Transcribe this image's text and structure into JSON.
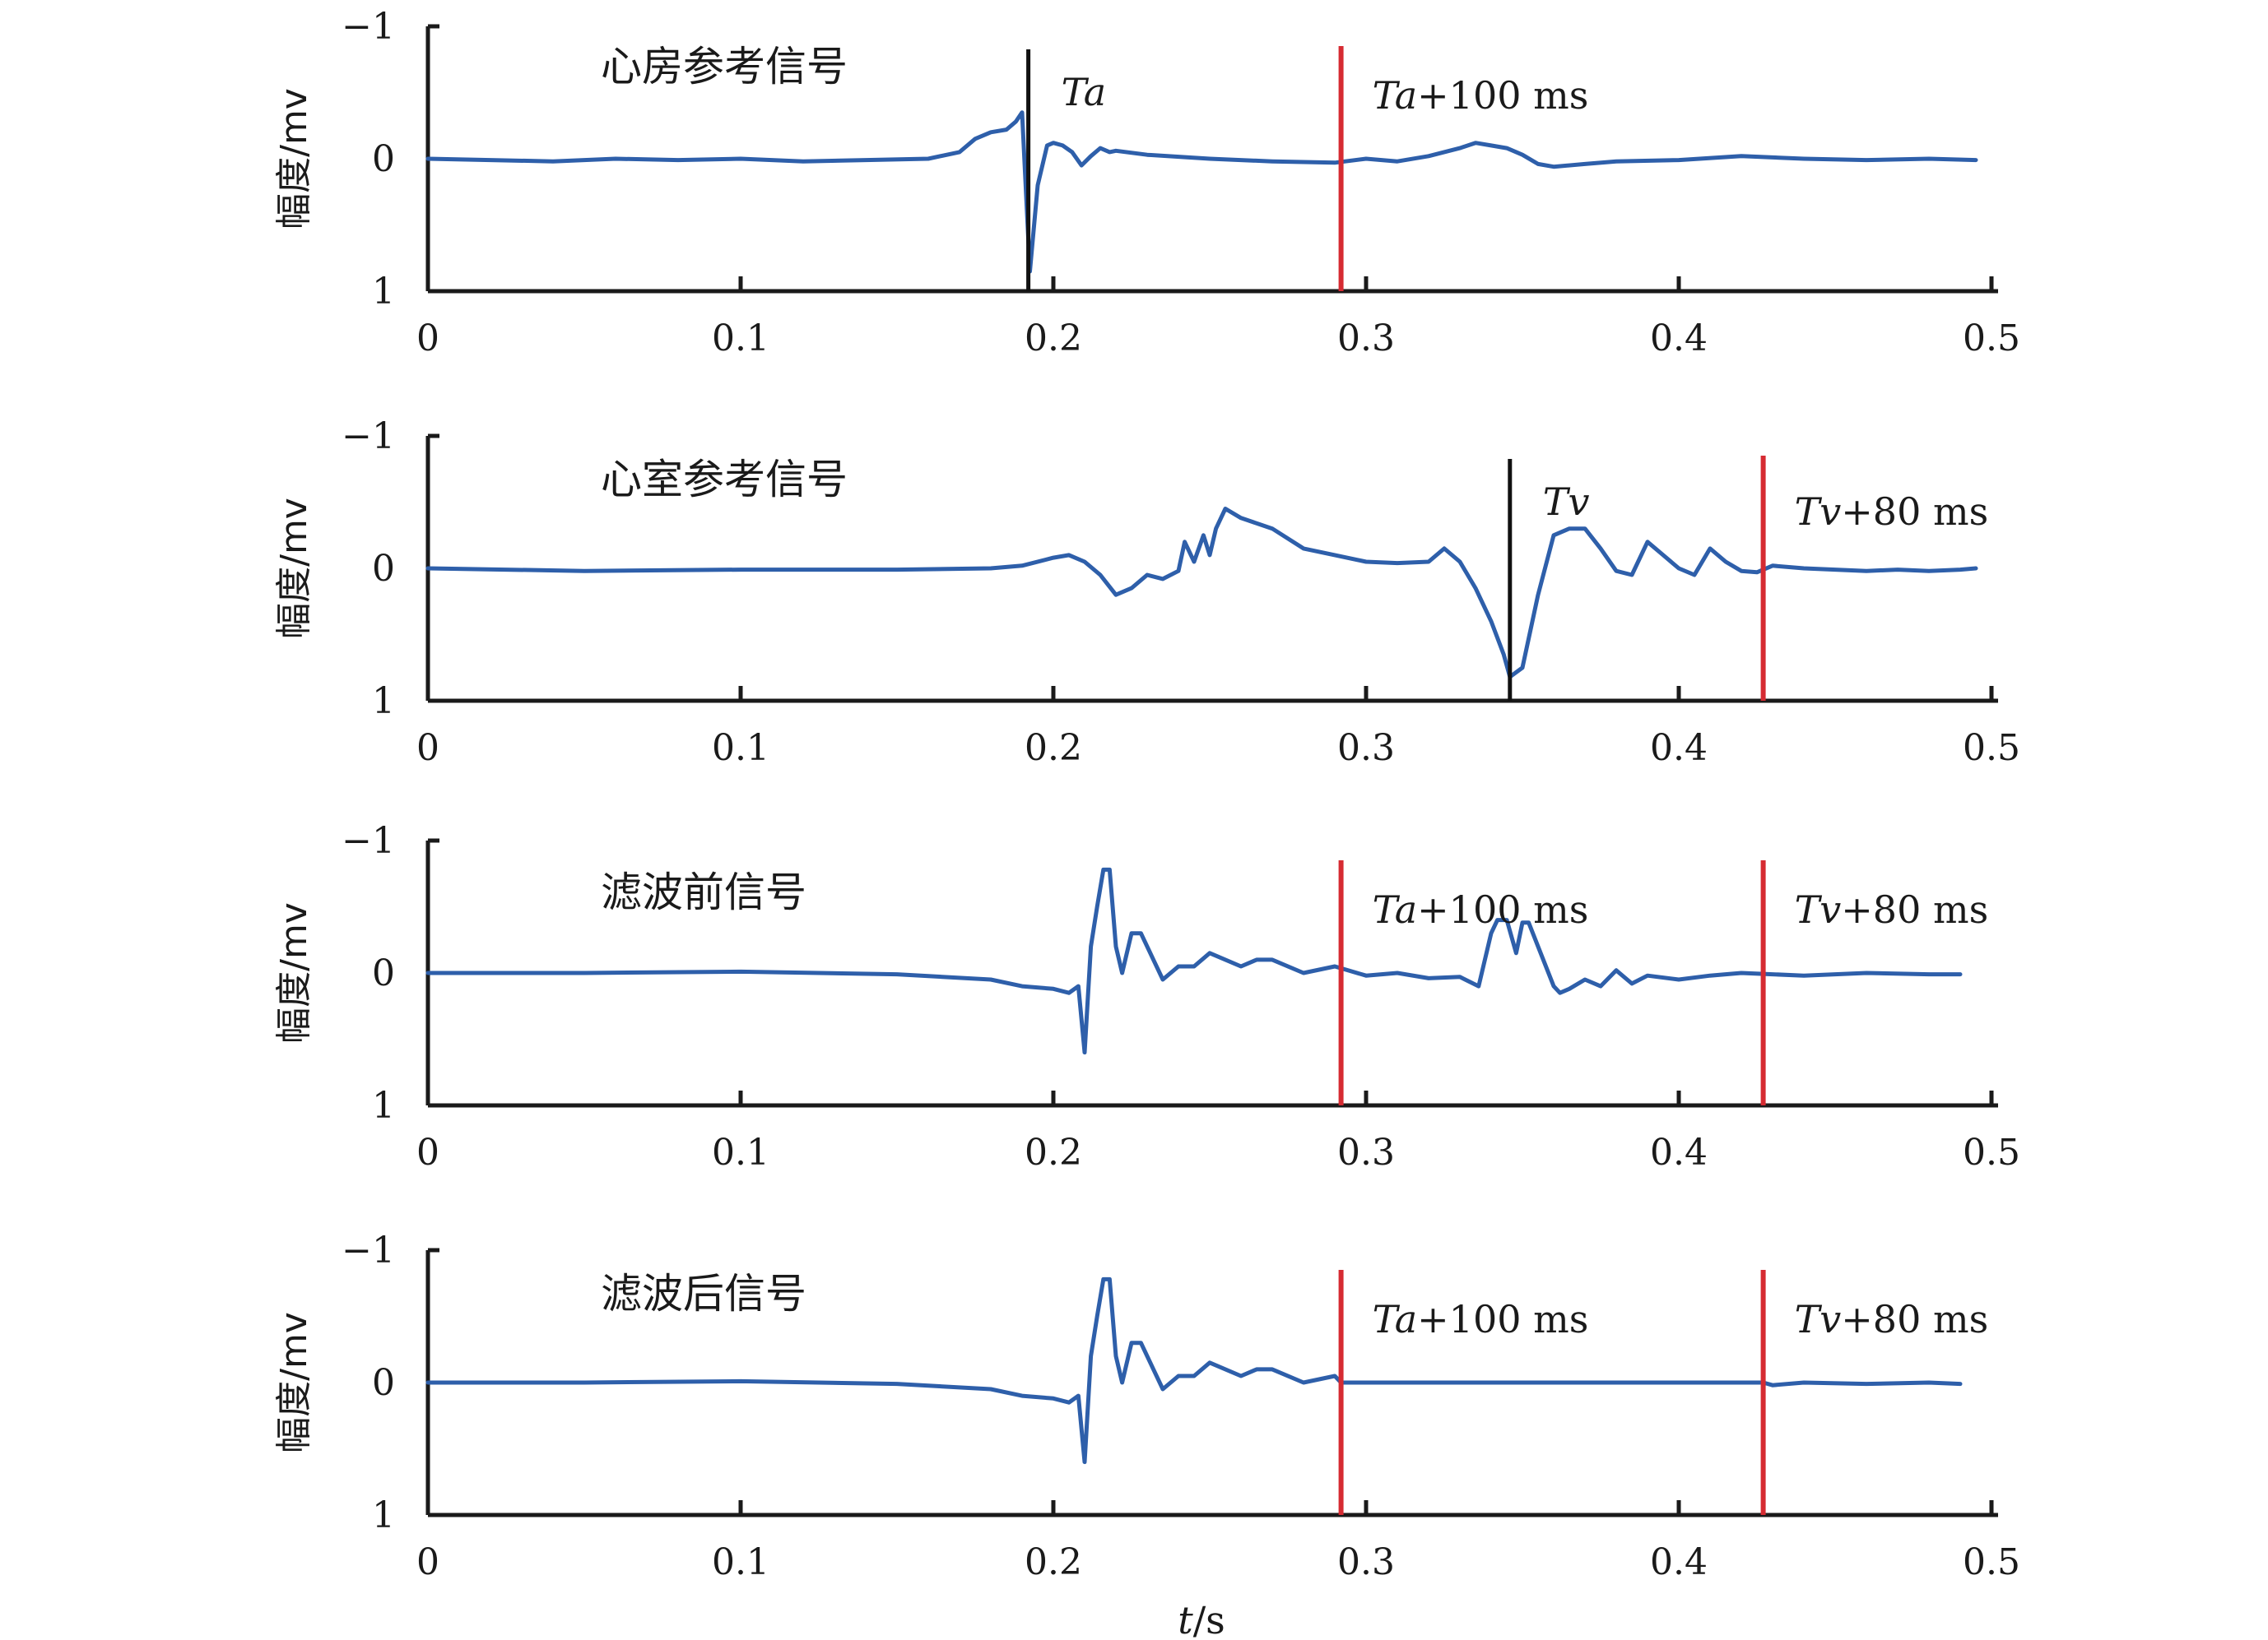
{
  "chart_data": {
    "type": "line",
    "x_title_italic": "t",
    "x_title_unit": "/s",
    "y_title": "幅度/mv",
    "xlim": [
      0,
      0.5
    ],
    "ylim": [
      1,
      -1
    ],
    "y_inverted": true,
    "x_ticks": [
      "0",
      "0.1",
      "0.2",
      "0.3",
      "0.4",
      "0.5"
    ],
    "y_ticks": [
      "−1",
      "0",
      "1"
    ],
    "colors": {
      "signal": "#2e5faa",
      "marker_red": "#d62b32",
      "marker_black": "#111111",
      "axis": "#1a1a1a"
    },
    "panels": [
      {
        "title": "心房参考信号",
        "markers": [
          {
            "x": 0.192,
            "label_italic": "Ta",
            "label_rest": "",
            "color": "black"
          },
          {
            "x": 0.292,
            "label_italic": "Ta",
            "label_rest": "+100 ms",
            "color": "red"
          }
        ],
        "series": {
          "x": [
            0,
            0.02,
            0.04,
            0.06,
            0.08,
            0.1,
            0.12,
            0.14,
            0.16,
            0.17,
            0.175,
            0.18,
            0.185,
            0.188,
            0.19,
            0.1925,
            0.195,
            0.198,
            0.2,
            0.203,
            0.206,
            0.209,
            0.212,
            0.215,
            0.218,
            0.22,
            0.23,
            0.25,
            0.27,
            0.29,
            0.3,
            0.31,
            0.32,
            0.33,
            0.335,
            0.34,
            0.345,
            0.35,
            0.355,
            0.36,
            0.37,
            0.38,
            0.4,
            0.42,
            0.44,
            0.46,
            0.48,
            0.495
          ],
          "y": [
            0,
            0.01,
            0.02,
            0,
            0.01,
            0,
            0.02,
            0.01,
            0,
            -0.05,
            -0.15,
            -0.2,
            -0.22,
            -0.28,
            -0.35,
            0.85,
            0.2,
            -0.1,
            -0.12,
            -0.1,
            -0.05,
            0.05,
            -0.02,
            -0.08,
            -0.05,
            -0.06,
            -0.03,
            0,
            0.02,
            0.03,
            0,
            0.02,
            -0.02,
            -0.08,
            -0.12,
            -0.1,
            -0.08,
            -0.03,
            0.04,
            0.06,
            0.04,
            0.02,
            0.01,
            -0.02,
            0,
            0.01,
            0,
            0.01
          ]
        }
      },
      {
        "title": "心室参考信号",
        "markers": [
          {
            "x": 0.346,
            "label_italic": "Tv",
            "label_rest": "",
            "color": "black"
          },
          {
            "x": 0.427,
            "label_italic": "Tv",
            "label_rest": "+80 ms",
            "color": "red"
          }
        ],
        "series": {
          "x": [
            0,
            0.05,
            0.1,
            0.15,
            0.18,
            0.19,
            0.2,
            0.205,
            0.21,
            0.215,
            0.22,
            0.225,
            0.23,
            0.235,
            0.24,
            0.242,
            0.245,
            0.248,
            0.25,
            0.252,
            0.255,
            0.26,
            0.27,
            0.28,
            0.29,
            0.3,
            0.31,
            0.32,
            0.325,
            0.33,
            0.335,
            0.34,
            0.344,
            0.346,
            0.35,
            0.355,
            0.36,
            0.365,
            0.37,
            0.375,
            0.38,
            0.385,
            0.39,
            0.395,
            0.4,
            0.405,
            0.41,
            0.415,
            0.42,
            0.425,
            0.43,
            0.44,
            0.45,
            0.46,
            0.47,
            0.48,
            0.49,
            0.495
          ],
          "y": [
            0,
            0.02,
            0.01,
            0.01,
            0,
            -0.02,
            -0.08,
            -0.1,
            -0.05,
            0.05,
            0.2,
            0.15,
            0.05,
            0.08,
            0.02,
            -0.2,
            -0.05,
            -0.25,
            -0.1,
            -0.3,
            -0.45,
            -0.38,
            -0.3,
            -0.15,
            -0.1,
            -0.05,
            -0.04,
            -0.05,
            -0.15,
            -0.05,
            0.15,
            0.4,
            0.65,
            0.82,
            0.75,
            0.2,
            -0.25,
            -0.3,
            -0.3,
            -0.15,
            0.02,
            0.05,
            -0.2,
            -0.1,
            0,
            0.05,
            -0.15,
            -0.05,
            0.02,
            0.03,
            -0.02,
            0,
            0.01,
            0.02,
            0.01,
            0.02,
            0.01,
            0
          ]
        }
      },
      {
        "title": "滤波前信号",
        "markers": [
          {
            "x": 0.292,
            "label_italic": "Ta",
            "label_rest": "+100 ms",
            "color": "red"
          },
          {
            "x": 0.427,
            "label_italic": "Tv",
            "label_rest": "+80 ms",
            "color": "red"
          }
        ],
        "series": {
          "x": [
            0,
            0.05,
            0.1,
            0.15,
            0.18,
            0.19,
            0.2,
            0.205,
            0.208,
            0.21,
            0.212,
            0.214,
            0.216,
            0.218,
            0.22,
            0.222,
            0.225,
            0.228,
            0.232,
            0.235,
            0.24,
            0.245,
            0.25,
            0.26,
            0.265,
            0.27,
            0.28,
            0.29,
            0.3,
            0.31,
            0.32,
            0.33,
            0.336,
            0.34,
            0.342,
            0.345,
            0.348,
            0.35,
            0.352,
            0.355,
            0.36,
            0.362,
            0.365,
            0.37,
            0.375,
            0.38,
            0.385,
            0.39,
            0.4,
            0.41,
            0.42,
            0.43,
            0.44,
            0.46,
            0.48,
            0.49
          ],
          "y": [
            0,
            0,
            -0.01,
            0.01,
            0.05,
            0.1,
            0.12,
            0.15,
            0.1,
            0.6,
            -0.2,
            -0.5,
            -0.78,
            -0.78,
            -0.2,
            0,
            -0.3,
            -0.3,
            -0.1,
            0.05,
            -0.05,
            -0.05,
            -0.15,
            -0.05,
            -0.1,
            -0.1,
            0,
            -0.05,
            0.02,
            0,
            0.04,
            0.03,
            0.1,
            -0.3,
            -0.4,
            -0.4,
            -0.15,
            -0.38,
            -0.38,
            -0.2,
            0.1,
            0.15,
            0.12,
            0.05,
            0.1,
            -0.02,
            0.08,
            0.02,
            0.05,
            0.02,
            0,
            0.01,
            0.02,
            0,
            0.01,
            0.01
          ]
        }
      },
      {
        "title": "滤波后信号",
        "markers": [
          {
            "x": 0.292,
            "label_italic": "Ta",
            "label_rest": "+100 ms",
            "color": "red"
          },
          {
            "x": 0.427,
            "label_italic": "Tv",
            "label_rest": "+80 ms",
            "color": "red"
          }
        ],
        "series": {
          "x": [
            0,
            0.05,
            0.1,
            0.15,
            0.18,
            0.19,
            0.2,
            0.205,
            0.208,
            0.21,
            0.212,
            0.214,
            0.216,
            0.218,
            0.22,
            0.222,
            0.225,
            0.228,
            0.232,
            0.235,
            0.24,
            0.245,
            0.25,
            0.26,
            0.265,
            0.27,
            0.28,
            0.29,
            0.292,
            0.427,
            0.43,
            0.44,
            0.46,
            0.48,
            0.49
          ],
          "y": [
            0,
            0,
            -0.01,
            0.01,
            0.05,
            0.1,
            0.12,
            0.15,
            0.1,
            0.6,
            -0.2,
            -0.5,
            -0.78,
            -0.78,
            -0.2,
            0,
            -0.3,
            -0.3,
            -0.1,
            0.05,
            -0.05,
            -0.05,
            -0.15,
            -0.05,
            -0.1,
            -0.1,
            0,
            -0.05,
            0,
            0,
            0.02,
            0,
            0.01,
            0,
            0.01
          ]
        }
      }
    ]
  }
}
